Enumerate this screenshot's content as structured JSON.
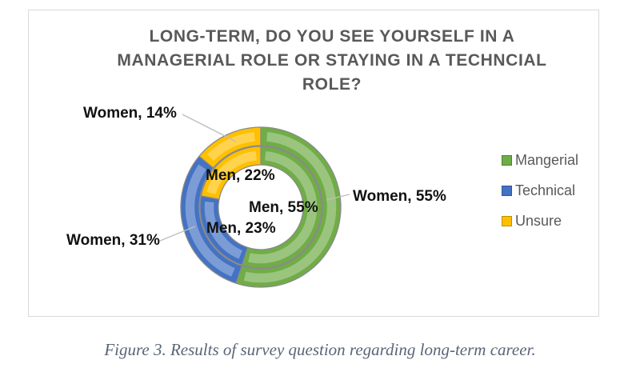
{
  "chart_data": {
    "type": "pie",
    "subtype": "doughnut-double-ring",
    "title": "LONG-TERM, DO YOU SEE YOURSELF IN A MANAGERIAL ROLE OR STAYING IN A TECHNCIAL ROLE?",
    "title_lines": [
      "LONG-TERM, DO YOU SEE YOURSELF IN A",
      "MANAGERIAL ROLE OR STAYING IN A TECHNCIAL",
      "ROLE?"
    ],
    "categories": [
      "Mangerial",
      "Technical",
      "Unsure"
    ],
    "colors": [
      "#70AD47",
      "#4472C4",
      "#FFC000"
    ],
    "series": [
      {
        "name": "Men",
        "ring": "inner",
        "values": [
          55,
          23,
          22
        ]
      },
      {
        "name": "Women",
        "ring": "outer",
        "values": [
          55,
          31,
          14
        ]
      }
    ],
    "start_angle_deg": 0,
    "direction": "clockwise",
    "legend_position": "right",
    "data_labels": [
      "Women, 14%",
      "Men, 22%",
      "Women, 55%",
      "Men, 55%",
      "Men, 23%",
      "Women, 31%"
    ]
  },
  "labels": {
    "women14": "Women, 14%",
    "men22": "Men, 22%",
    "women55": "Women, 55%",
    "men55": "Men, 55%",
    "men23": "Men, 23%",
    "women31": "Women, 31%"
  },
  "legend": {
    "items": [
      {
        "label": "Mangerial",
        "color": "#70AD47",
        "border": "#507E32"
      },
      {
        "label": "Technical",
        "color": "#4472C4",
        "border": "#2F5597"
      },
      {
        "label": "Unsure",
        "color": "#FFC000",
        "border": "#BF8F00"
      }
    ]
  },
  "caption": "Figure 3. Results of survey question regarding long-term career."
}
